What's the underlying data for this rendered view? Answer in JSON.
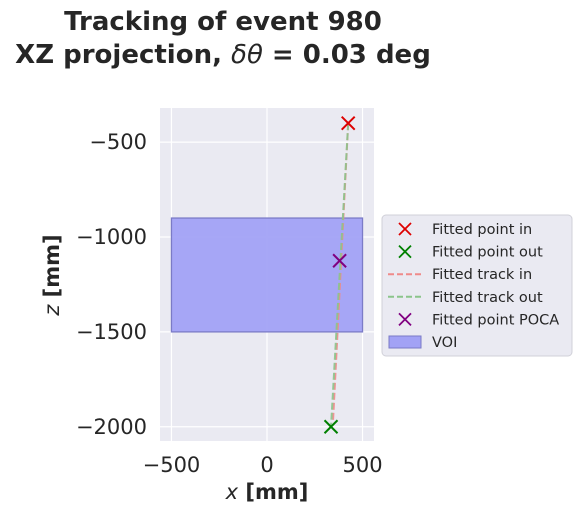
{
  "chart_data": {
    "type": "scatter",
    "title_line1": "Tracking of event 980",
    "title_line2_prefix": "XZ projection, ",
    "title_line2_symbol": "δθ",
    "title_line2_suffix": " = 0.03 deg",
    "xlabel_var": "x",
    "xlabel_unit": " [mm]",
    "ylabel_var": "z",
    "ylabel_unit": " [mm]",
    "xlim": [
      -560,
      560
    ],
    "ylim": [
      -2075,
      -320
    ],
    "xticks": [
      -500,
      0,
      500
    ],
    "xtick_labels": [
      "−500",
      "0",
      "500"
    ],
    "yticks": [
      -500,
      -1000,
      -1500,
      -2000
    ],
    "ytick_labels": [
      "−500",
      "−1000",
      "−1500",
      "−2000"
    ],
    "grid": true,
    "legend_position": "outside-right",
    "voi": {
      "x": [
        -500,
        500
      ],
      "z": [
        -1500,
        -900
      ],
      "color": "#a2a2f5",
      "edge": "#7b7bc7"
    },
    "fitted_track_in": {
      "x": [
        425,
        345
      ],
      "z": [
        -400,
        -1980
      ],
      "color": "#ef8a8a"
    },
    "fitted_track_out": {
      "x": [
        425,
        335
      ],
      "z": [
        -400,
        -2000
      ],
      "color": "#8bc48b"
    },
    "series": [
      {
        "name": "Fitted point in",
        "marker": "x",
        "color": "#dd0000",
        "x": [
          425
        ],
        "z": [
          -400
        ]
      },
      {
        "name": "Fitted point out",
        "marker": "x",
        "color": "#008000",
        "x": [
          335
        ],
        "z": [
          -2000
        ]
      },
      {
        "name": "Fitted point POCA",
        "marker": "x",
        "color": "#800080",
        "x": [
          380
        ],
        "z": [
          -1125
        ]
      }
    ],
    "legend": [
      {
        "label": "Fitted point in",
        "kind": "x",
        "color": "#dd0000"
      },
      {
        "label": "Fitted point out",
        "kind": "x",
        "color": "#008000"
      },
      {
        "label": "Fitted track in",
        "kind": "dash",
        "color": "#ef8a8a"
      },
      {
        "label": "Fitted track out",
        "kind": "dash",
        "color": "#8bc48b"
      },
      {
        "label": "Fitted point POCA",
        "kind": "x",
        "color": "#800080"
      },
      {
        "label": "VOI",
        "kind": "patch",
        "color": "#a2a2f5"
      }
    ]
  }
}
